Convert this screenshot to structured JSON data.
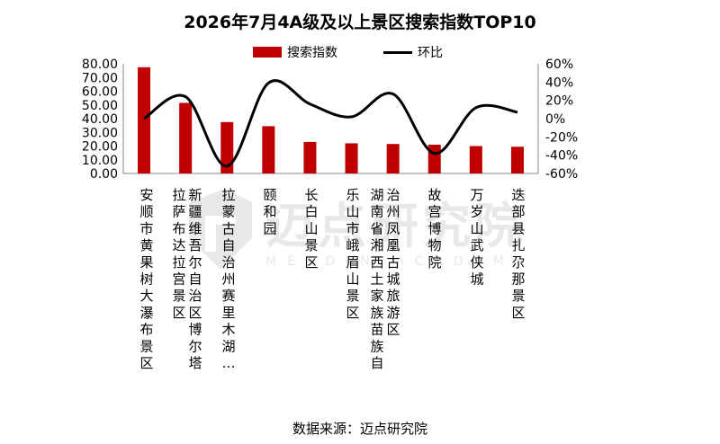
{
  "title": "2026年7月4A级及以上景区搜索指数TOP10",
  "legend": {
    "bar_label": "搜索指数",
    "line_label": "环比"
  },
  "source": "数据来源：迈点研究院",
  "watermark": {
    "text": "迈点研究院",
    "sub": "MEADIN ACADEMY"
  },
  "chart_data": {
    "type": "bar",
    "title": "2026年7月4A级及以上景区搜索指数TOP10",
    "categories": [
      "安顺市黄果树大瀑布景区",
      "拉萨布达拉宫景区",
      "新疆维吾尔自治区博尔塔拉蒙古自治州赛里木湖…",
      "颐和园",
      "长白山景区",
      "乐山市峨眉山景区",
      "湖南省湘西土家族苗族自治州凤凰古城旅游区",
      "故宫博物院",
      "万岁山武侠城",
      "迭部县扎尕那景区"
    ],
    "columns": [
      [
        "安",
        "顺",
        "市",
        "黄",
        "果",
        "树",
        "大",
        "瀑",
        "布",
        "景",
        "区"
      ],
      [
        "拉",
        "萨",
        "布",
        "达",
        "拉",
        "宫",
        "景",
        "区"
      ],
      [
        "新",
        "疆",
        "维",
        "吾",
        "尔",
        "自",
        "治",
        "区",
        "博",
        "尔",
        "塔"
      ],
      [
        "拉",
        "蒙",
        "古",
        "自",
        "治",
        "州",
        "赛",
        "里",
        "木",
        "湖",
        "…"
      ],
      [
        "颐",
        "和",
        "园"
      ],
      [
        "长",
        "白",
        "山",
        "景",
        "区"
      ],
      [
        "乐",
        "山",
        "市",
        "峨",
        "眉",
        "山",
        "景",
        "区"
      ],
      [
        "湖",
        "南",
        "省",
        "湘",
        "西",
        "土",
        "家",
        "族",
        "苗",
        "族",
        "自"
      ],
      [
        "治",
        "州",
        "凤",
        "凰",
        "古",
        "城",
        "旅",
        "游",
        "区"
      ],
      [
        "故",
        "宫",
        "博",
        "物",
        "院"
      ],
      [
        "万",
        "岁",
        "山",
        "武",
        "侠",
        "城"
      ],
      [
        "迭",
        "部",
        "县",
        "扎",
        "尕",
        "那",
        "景",
        "区"
      ]
    ],
    "series": [
      {
        "name": "搜索指数",
        "type": "bar",
        "axis": "left",
        "values": [
          77.5,
          51.5,
          37.5,
          34.5,
          23.0,
          22.0,
          21.5,
          21.0,
          20.0,
          19.5
        ]
      },
      {
        "name": "环比",
        "type": "line",
        "axis": "right",
        "unit": "%",
        "values": [
          0,
          24,
          -52,
          39,
          16,
          2,
          27,
          -38,
          12,
          7
        ]
      }
    ],
    "y_left": {
      "min": 0,
      "max": 80,
      "step": 10,
      "ticks": [
        "0.00",
        "10.00",
        "20.00",
        "30.00",
        "40.00",
        "50.00",
        "60.00",
        "70.00",
        "80.00"
      ]
    },
    "y_right": {
      "min": -60,
      "max": 60,
      "step": 20,
      "ticks": [
        "-60%",
        "-40%",
        "-20%",
        "0%",
        "20%",
        "40%",
        "60%"
      ]
    },
    "grid": false,
    "legend_position": "top-center",
    "colors": {
      "bar": "#c00000",
      "line": "#000000"
    }
  }
}
